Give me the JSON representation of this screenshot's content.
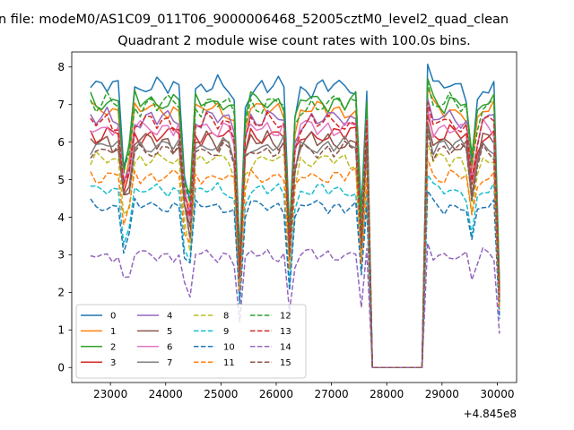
{
  "figure": {
    "suptitle": "n file: modeM0/AS1C09_011T06_9000006468_52005cztM0_level2_quad_clean",
    "title": "Quadrant 2 module wise count rates with 100.0s bins.",
    "x_offset_label": "+4.845e8"
  },
  "chart_data": {
    "type": "line",
    "title": "Quadrant 2 module wise count rates with 100.0s bins.",
    "xlabel": "",
    "ylabel": "",
    "x_offset": 484500000,
    "x_offset_label": "+4.845e8",
    "xlim": [
      22300,
      30350
    ],
    "ylim": [
      -0.4,
      8.4
    ],
    "x_ticks": [
      23000,
      24000,
      25000,
      26000,
      27000,
      28000,
      29000,
      30000
    ],
    "y_ticks": [
      0,
      1,
      2,
      3,
      4,
      5,
      6,
      7,
      8
    ],
    "grid": false,
    "legend": {
      "position": "lower-left",
      "columns": 4
    },
    "segments": [
      [
        22640,
        27640
      ],
      [
        27740,
        28640
      ],
      [
        28740,
        30040
      ]
    ],
    "series": [
      {
        "name": "0",
        "color": "#1f77b4",
        "dash": false,
        "level": 7.45,
        "amp": 0.3,
        "phase": 0.0,
        "gap_value": 0
      },
      {
        "name": "1",
        "color": "#ff7f0e",
        "dash": false,
        "level": 6.85,
        "amp": 0.28,
        "phase": 0.7,
        "gap_value": 0
      },
      {
        "name": "2",
        "color": "#2ca02c",
        "dash": false,
        "level": 7.1,
        "amp": 0.32,
        "phase": 1.4,
        "gap_value": 0
      },
      {
        "name": "3",
        "color": "#d62728",
        "dash": false,
        "level": 6.2,
        "amp": 0.28,
        "phase": 2.1,
        "gap_value": 0
      },
      {
        "name": "4",
        "color": "#9467bd",
        "dash": false,
        "level": 6.6,
        "amp": 0.3,
        "phase": 2.8,
        "gap_value": 0
      },
      {
        "name": "5",
        "color": "#8c564b",
        "dash": false,
        "level": 6.0,
        "amp": 0.3,
        "phase": 3.5,
        "gap_value": 0
      },
      {
        "name": "6",
        "color": "#e377c2",
        "dash": false,
        "level": 6.4,
        "amp": 0.28,
        "phase": 4.2,
        "gap_value": 0
      },
      {
        "name": "7",
        "color": "#7f7f7f",
        "dash": false,
        "level": 5.9,
        "amp": 0.25,
        "phase": 4.9,
        "gap_value": 0
      },
      {
        "name": "8",
        "color": "#bcbd22",
        "dash": true,
        "level": 5.5,
        "amp": 0.25,
        "phase": 5.6,
        "gap_value": 0
      },
      {
        "name": "9",
        "color": "#17becf",
        "dash": true,
        "level": 4.7,
        "amp": 0.22,
        "phase": 0.4,
        "gap_value": 0
      },
      {
        "name": "10",
        "color": "#1f77b4",
        "dash": true,
        "level": 4.3,
        "amp": 0.22,
        "phase": 1.1,
        "gap_value": 0
      },
      {
        "name": "11",
        "color": "#ff7f0e",
        "dash": true,
        "level": 5.1,
        "amp": 0.24,
        "phase": 1.8,
        "gap_value": 0
      },
      {
        "name": "12",
        "color": "#2ca02c",
        "dash": true,
        "level": 7.0,
        "amp": 0.32,
        "phase": 2.5,
        "gap_value": 0
      },
      {
        "name": "13",
        "color": "#d62728",
        "dash": true,
        "level": 6.5,
        "amp": 0.28,
        "phase": 3.2,
        "gap_value": 0
      },
      {
        "name": "14",
        "color": "#9467bd",
        "dash": true,
        "level": 3.0,
        "amp": 0.2,
        "phase": 3.9,
        "gap_value": 0
      },
      {
        "name": "15",
        "color": "#8c564b",
        "dash": true,
        "level": 5.8,
        "amp": 0.26,
        "phase": 4.6,
        "gap_value": 0
      }
    ]
  }
}
